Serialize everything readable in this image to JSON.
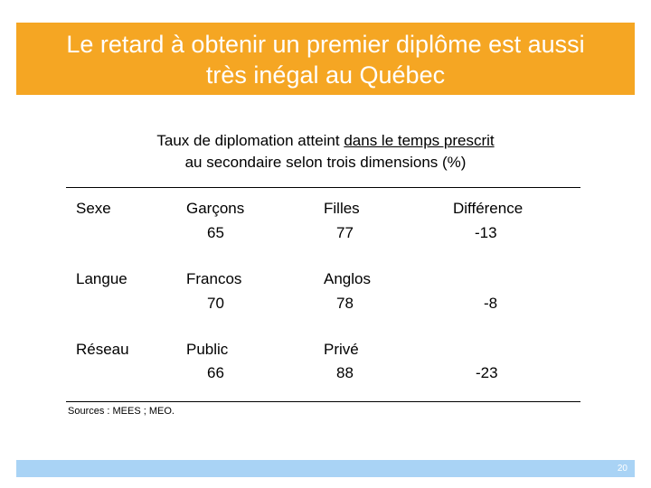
{
  "slide": {
    "title_line1": "Le retard à obtenir un premier diplôme est aussi",
    "title_line2": "très inégal au Québec",
    "subtitle_line1_pre": "Taux de diplomation atteint ",
    "subtitle_line1_underlined": "dans le temps prescrit",
    "subtitle_line2": "au secondaire selon trois dimensions (%)",
    "sources": "Sources : MEES ; MEO.",
    "page_number": "20"
  },
  "table": {
    "rows": [
      {
        "dimension": "Sexe",
        "group1": "Garçons",
        "value1": "65",
        "group2": "Filles",
        "value2": "77",
        "diff_label": "Différence",
        "diff": "-13"
      },
      {
        "dimension": "Langue",
        "group1": "Francos",
        "value1": "70",
        "group2": "Anglos",
        "value2": "78",
        "diff_label": "",
        "diff": "-8"
      },
      {
        "dimension": "Réseau",
        "group1": "Public",
        "value1": "66",
        "group2": "Privé",
        "value2": "88",
        "diff_label": "",
        "diff": "-23"
      }
    ]
  },
  "colors": {
    "banner": "#f5a623",
    "footer_bar": "#a9d3f5"
  }
}
